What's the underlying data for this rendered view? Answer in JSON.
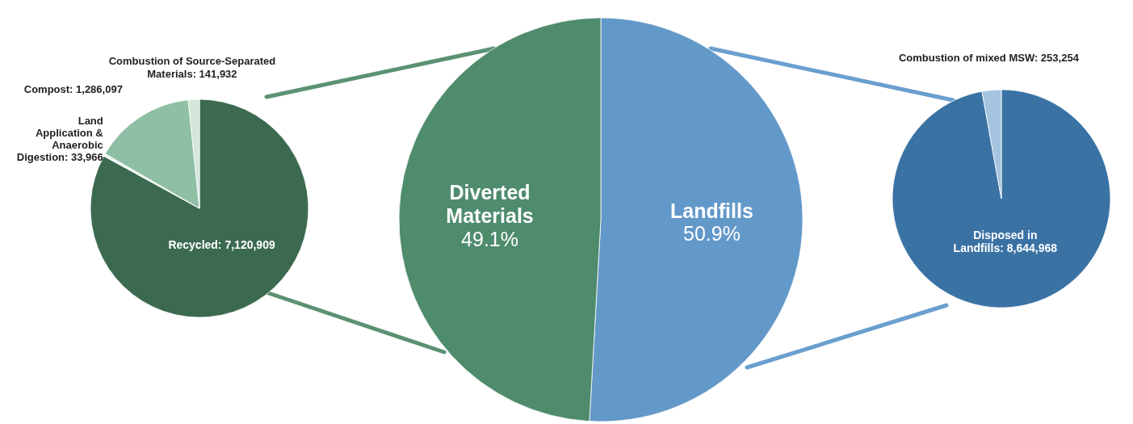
{
  "chart_data": [
    {
      "type": "pie",
      "categories": [
        "Recycled",
        "Land Application & Anaerobic Digestion",
        "Compost",
        "Combustion of Source-Separated Materials"
      ],
      "values": [
        7120909,
        33966,
        1286097,
        141932
      ],
      "value_labels": [
        "7,120,909",
        "33,966",
        "1,286,097",
        "141,932"
      ],
      "colors": [
        "#3b6a50",
        "#eef3ef",
        "#8fbfa5",
        "#d3e6da"
      ]
    },
    {
      "type": "pie",
      "categories": [
        "Landfills",
        "Diverted Materials"
      ],
      "values": [
        50.9,
        49.1
      ],
      "value_labels": [
        "50.9%",
        "49.1%"
      ],
      "colors": [
        "#6399c9",
        "#4f8b6d"
      ]
    },
    {
      "type": "pie",
      "categories": [
        "Disposed in Landfills",
        "Combustion of mixed MSW"
      ],
      "values": [
        8644968,
        253254
      ],
      "value_labels": [
        "8,644,968",
        "253,254"
      ],
      "colors": [
        "#3a72a4",
        "#a5c4e0"
      ]
    }
  ]
}
